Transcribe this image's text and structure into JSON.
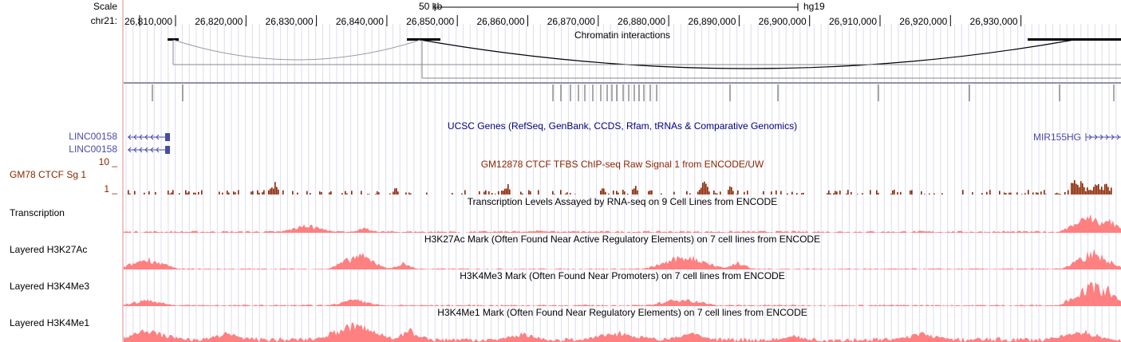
{
  "browser": {
    "scale_label": "Scale",
    "scale_value": "50 kb",
    "assembly": "hg19",
    "chrom_label": "chr21:",
    "positions": [
      "26,810,000",
      "26,820,000",
      "26,830,000",
      "26,840,000",
      "26,850,000",
      "26,860,000",
      "26,870,000",
      "26,880,000",
      "26,890,000",
      "26,900,000",
      "26,910,000",
      "26,920,000",
      "26,930,000"
    ]
  },
  "tracks": {
    "interactions": {
      "title": "Chromatin interactions"
    },
    "genes": {
      "title": "UCSC Genes (RefSeq, GenBank, CCDS, Rfam, tRNAs & Comparative Genomics)",
      "left_gene_1": "LINC00158",
      "left_gene_2": "LINC00158",
      "right_gene": "MIR155HG"
    },
    "ctcf": {
      "label": "GM78 CTCF Sg 1",
      "title": "GM12878 CTCF TFBS ChIP-seq Raw Signal 1 from ENCODE/UW",
      "max": "10 _",
      "min": "1 _"
    },
    "transcription": {
      "label": "Transcription",
      "title": "Transcription Levels Assayed by RNA-seq on 9 Cell Lines from ENCODE"
    },
    "h3k27ac": {
      "label": "Layered H3K27Ac",
      "title": "H3K27Ac Mark (Often Found Near Active Regulatory Elements) on 7 cell lines from ENCODE"
    },
    "h3k4me3": {
      "label": "Layered H3K4Me3",
      "title": "H3K4Me3 Mark (Often Found Near Promoters) on 7 cell lines from ENCODE"
    },
    "h3k4me1": {
      "label": "Layered H3K4Me1",
      "title": "H3K4Me1 Mark (Often Found Near Regulatory Elements) on 7 cell lines from ENCODE"
    }
  },
  "colors": {
    "ctcf": "#8b2500",
    "histone": "#ff8080",
    "gene": "#4a4aa8",
    "title": "#000080",
    "grid": "#dcdcf0"
  }
}
